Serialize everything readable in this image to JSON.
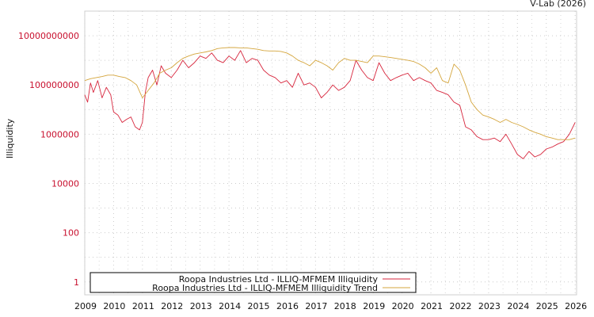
{
  "credit": "V-Lab (2026)",
  "chart_data": {
    "type": "line",
    "ylabel": "Illiquidity",
    "yscale": "log",
    "ylim": [
      0.3,
      100000000000
    ],
    "y_ticks": [
      {
        "value": 1,
        "label": "1"
      },
      {
        "value": 100,
        "label": "100"
      },
      {
        "value": 10000,
        "label": "10000"
      },
      {
        "value": 1000000,
        "label": "1000000"
      },
      {
        "value": 100000000,
        "label": "100000000"
      },
      {
        "value": 10000000000,
        "label": "10000000000"
      }
    ],
    "xlim": [
      2009.0,
      2026.05
    ],
    "x_ticks": [
      "2009",
      "2010",
      "2011",
      "2012",
      "2013",
      "2014",
      "2015",
      "2016",
      "2017",
      "2018",
      "2019",
      "2020",
      "2021",
      "2022",
      "2023",
      "2024",
      "2025",
      "2026"
    ],
    "grid": true,
    "legend_position": "bottom-left",
    "series": [
      {
        "name": "Roopa Industries Ltd - ILLIQ-MFMEM Illiquidity",
        "color": "#d7263d",
        "x": [
          2009.0,
          2009.1,
          2009.2,
          2009.3,
          2009.45,
          2009.6,
          2009.75,
          2009.9,
          2010.0,
          2010.15,
          2010.3,
          2010.45,
          2010.6,
          2010.75,
          2010.9,
          2011.0,
          2011.1,
          2011.2,
          2011.35,
          2011.5,
          2011.65,
          2011.8,
          2012.0,
          2012.2,
          2012.4,
          2012.6,
          2012.8,
          2013.0,
          2013.2,
          2013.4,
          2013.6,
          2013.8,
          2014.0,
          2014.2,
          2014.4,
          2014.6,
          2014.8,
          2015.0,
          2015.2,
          2015.4,
          2015.6,
          2015.8,
          2016.0,
          2016.2,
          2016.4,
          2016.6,
          2016.8,
          2017.0,
          2017.2,
          2017.4,
          2017.6,
          2017.8,
          2018.0,
          2018.2,
          2018.4,
          2018.6,
          2018.8,
          2019.0,
          2019.2,
          2019.4,
          2019.6,
          2019.8,
          2020.0,
          2020.2,
          2020.4,
          2020.6,
          2020.8,
          2021.0,
          2021.2,
          2021.4,
          2021.6,
          2021.8,
          2022.0,
          2022.2,
          2022.4,
          2022.6,
          2022.8,
          2023.0,
          2023.2,
          2023.4,
          2023.6,
          2023.8,
          2024.0,
          2024.2,
          2024.4,
          2024.6,
          2024.8,
          2025.0,
          2025.2,
          2025.4,
          2025.6,
          2025.8,
          2026.0
        ],
        "y": [
          40000000,
          20000000,
          120000000,
          50000000,
          150000000,
          30000000,
          80000000,
          40000000,
          8000000,
          6000000,
          3000000,
          4000000,
          5000000,
          2000000,
          1500000,
          3000000,
          50000000,
          200000000,
          400000000,
          100000000,
          600000000,
          300000000,
          200000000,
          400000000,
          1000000000,
          500000000,
          800000000,
          1500000000,
          1200000000,
          2000000000,
          1000000000,
          800000000,
          1500000000,
          1000000000,
          2500000000,
          800000000,
          1200000000,
          1000000000,
          400000000,
          250000000,
          200000000,
          120000000,
          150000000,
          80000000,
          300000000,
          100000000,
          120000000,
          80000000,
          30000000,
          50000000,
          100000000,
          60000000,
          80000000,
          150000000,
          1000000000,
          400000000,
          200000000,
          150000000,
          800000000,
          300000000,
          150000000,
          200000000,
          250000000,
          300000000,
          150000000,
          200000000,
          150000000,
          120000000,
          60000000,
          50000000,
          40000000,
          20000000,
          15000000,
          2000000,
          1500000,
          800000,
          600000,
          600000,
          700000,
          500000,
          1000000,
          400000,
          150000,
          100000,
          200000,
          120000,
          150000,
          250000,
          300000,
          400000,
          500000,
          1000000,
          3000000
        ]
      },
      {
        "name": "Roopa Industries Ltd - ILLIQ-MFMEM Illiquidity Trend",
        "color": "#d4a53c",
        "x": [
          2009.0,
          2009.2,
          2009.4,
          2009.6,
          2009.8,
          2010.0,
          2010.2,
          2010.4,
          2010.6,
          2010.8,
          2011.0,
          2011.2,
          2011.4,
          2011.6,
          2011.8,
          2012.0,
          2012.2,
          2012.4,
          2012.6,
          2012.8,
          2013.0,
          2013.2,
          2013.4,
          2013.6,
          2013.8,
          2014.0,
          2014.2,
          2014.4,
          2014.6,
          2014.8,
          2015.0,
          2015.2,
          2015.4,
          2015.6,
          2015.8,
          2016.0,
          2016.2,
          2016.4,
          2016.6,
          2016.8,
          2017.0,
          2017.2,
          2017.4,
          2017.6,
          2017.8,
          2018.0,
          2018.2,
          2018.4,
          2018.6,
          2018.8,
          2019.0,
          2019.2,
          2019.4,
          2019.6,
          2019.8,
          2020.0,
          2020.2,
          2020.4,
          2020.6,
          2020.8,
          2021.0,
          2021.2,
          2021.4,
          2021.6,
          2021.8,
          2022.0,
          2022.2,
          2022.4,
          2022.6,
          2022.8,
          2023.0,
          2023.2,
          2023.4,
          2023.6,
          2023.8,
          2024.0,
          2024.2,
          2024.4,
          2024.6,
          2024.8,
          2025.0,
          2025.2,
          2025.4,
          2025.6,
          2025.8,
          2026.0
        ],
        "y": [
          150000000,
          180000000,
          200000000,
          220000000,
          250000000,
          250000000,
          220000000,
          200000000,
          150000000,
          100000000,
          30000000,
          60000000,
          120000000,
          300000000,
          400000000,
          500000000,
          800000000,
          1200000000,
          1500000000,
          1800000000,
          2000000000,
          2200000000,
          2500000000,
          3000000000,
          3200000000,
          3300000000,
          3300000000,
          3200000000,
          3200000000,
          3000000000,
          2800000000,
          2500000000,
          2400000000,
          2400000000,
          2300000000,
          2000000000,
          1500000000,
          1000000000,
          800000000,
          600000000,
          1000000000,
          800000000,
          600000000,
          400000000,
          800000000,
          1200000000,
          1000000000,
          1000000000,
          900000000,
          800000000,
          1500000000,
          1500000000,
          1400000000,
          1300000000,
          1200000000,
          1100000000,
          1000000000,
          900000000,
          700000000,
          500000000,
          300000000,
          500000000,
          150000000,
          120000000,
          700000000,
          400000000,
          100000000,
          20000000,
          10000000,
          6000000,
          5000000,
          4000000,
          3000000,
          4000000,
          3000000,
          2500000,
          2000000,
          1500000,
          1200000,
          1000000,
          800000,
          700000,
          600000,
          600000,
          600000,
          700000
        ]
      }
    ]
  }
}
